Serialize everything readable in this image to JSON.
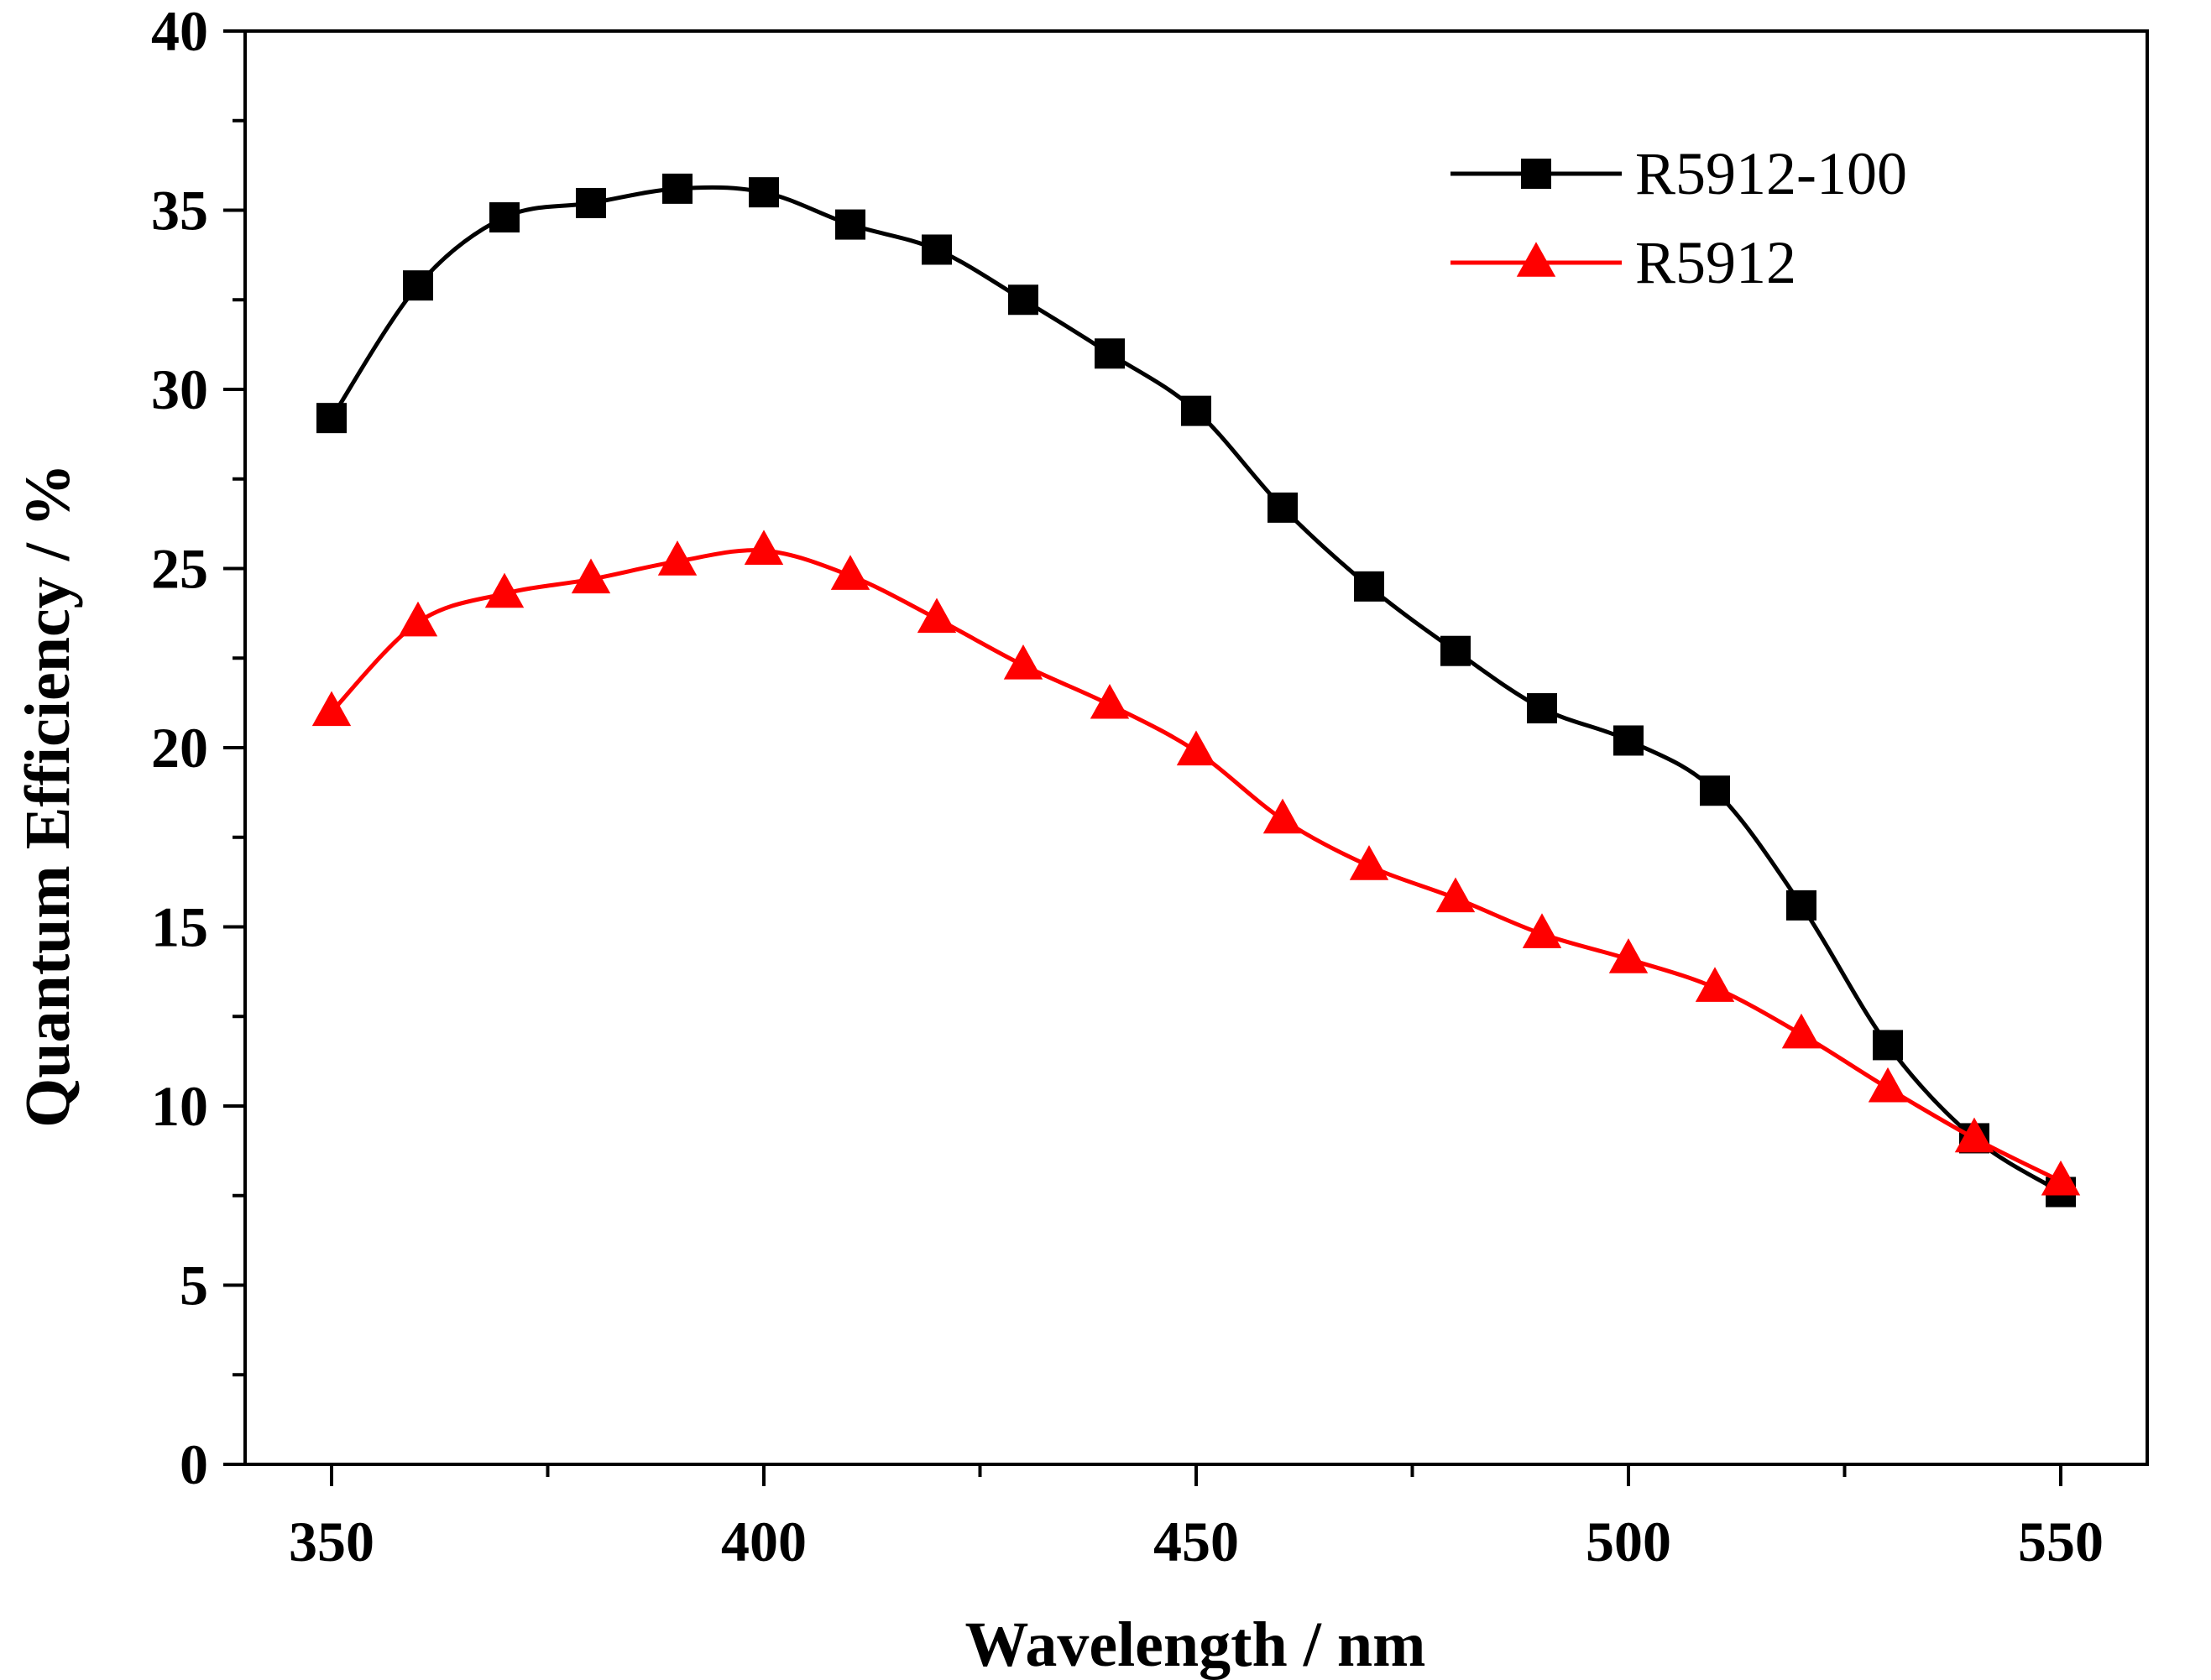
{
  "chart_data": {
    "type": "line",
    "title": "",
    "xlabel": "Wavelength / nm",
    "ylabel": "Quantum Efficiency / %",
    "xlim": [
      340,
      560
    ],
    "ylim": [
      0,
      40
    ],
    "x_ticks": [
      "350",
      "400",
      "450",
      "500",
      "550"
    ],
    "y_ticks": [
      "0",
      "5",
      "10",
      "15",
      "20",
      "25",
      "30",
      "35",
      "40"
    ],
    "grid": false,
    "legend_position": "top-right",
    "x": [
      350,
      360,
      370,
      380,
      390,
      400,
      410,
      420,
      430,
      440,
      450,
      460,
      470,
      480,
      490,
      500,
      510,
      520,
      530,
      540,
      550
    ],
    "series": [
      {
        "name": "R5912-100",
        "color": "#000000",
        "marker": "square",
        "values": [
          29.2,
          32.9,
          34.8,
          35.2,
          35.6,
          35.5,
          34.6,
          33.9,
          32.5,
          31.0,
          29.4,
          26.7,
          24.5,
          22.7,
          21.1,
          20.2,
          18.8,
          15.6,
          11.7,
          9.1,
          7.6
        ]
      },
      {
        "name": "R5912",
        "color": "#ff0000",
        "marker": "triangle",
        "values": [
          21.0,
          23.5,
          24.3,
          24.7,
          25.2,
          25.5,
          24.8,
          23.6,
          22.3,
          21.2,
          19.9,
          18.0,
          16.7,
          15.8,
          14.8,
          14.1,
          13.3,
          12.0,
          10.5,
          9.1,
          7.9
        ]
      }
    ]
  }
}
